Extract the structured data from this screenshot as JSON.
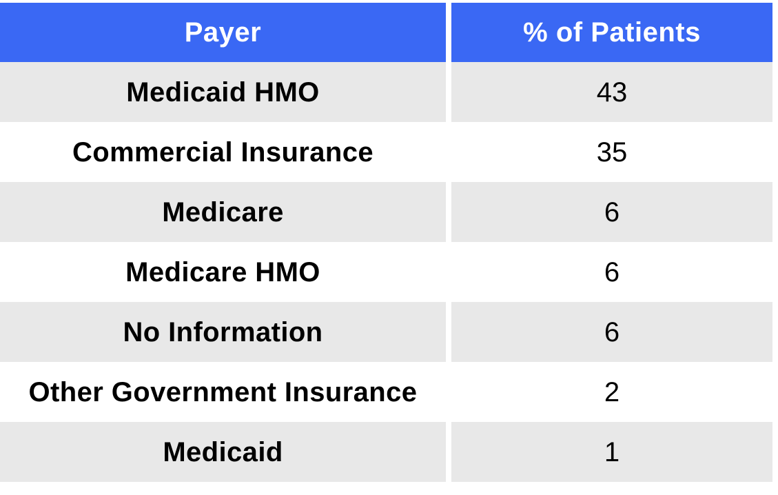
{
  "chart_data": {
    "type": "table",
    "columns": [
      "Payer",
      "% of Patients"
    ],
    "rows": [
      {
        "payer": "Medicaid HMO",
        "percent": "43"
      },
      {
        "payer": "Commercial Insurance",
        "percent": "35"
      },
      {
        "payer": "Medicare",
        "percent": "6"
      },
      {
        "payer": "Medicare HMO",
        "percent": "6"
      },
      {
        "payer": "No Information",
        "percent": "6"
      },
      {
        "payer": "Other Government Insurance",
        "percent": "2"
      },
      {
        "payer": "Medicaid",
        "percent": "1"
      }
    ]
  },
  "colors": {
    "header_background": "#3a68f4",
    "header_text": "#ffffff",
    "shaded_row": "#e8e8e8",
    "plain_row": "#ffffff"
  }
}
